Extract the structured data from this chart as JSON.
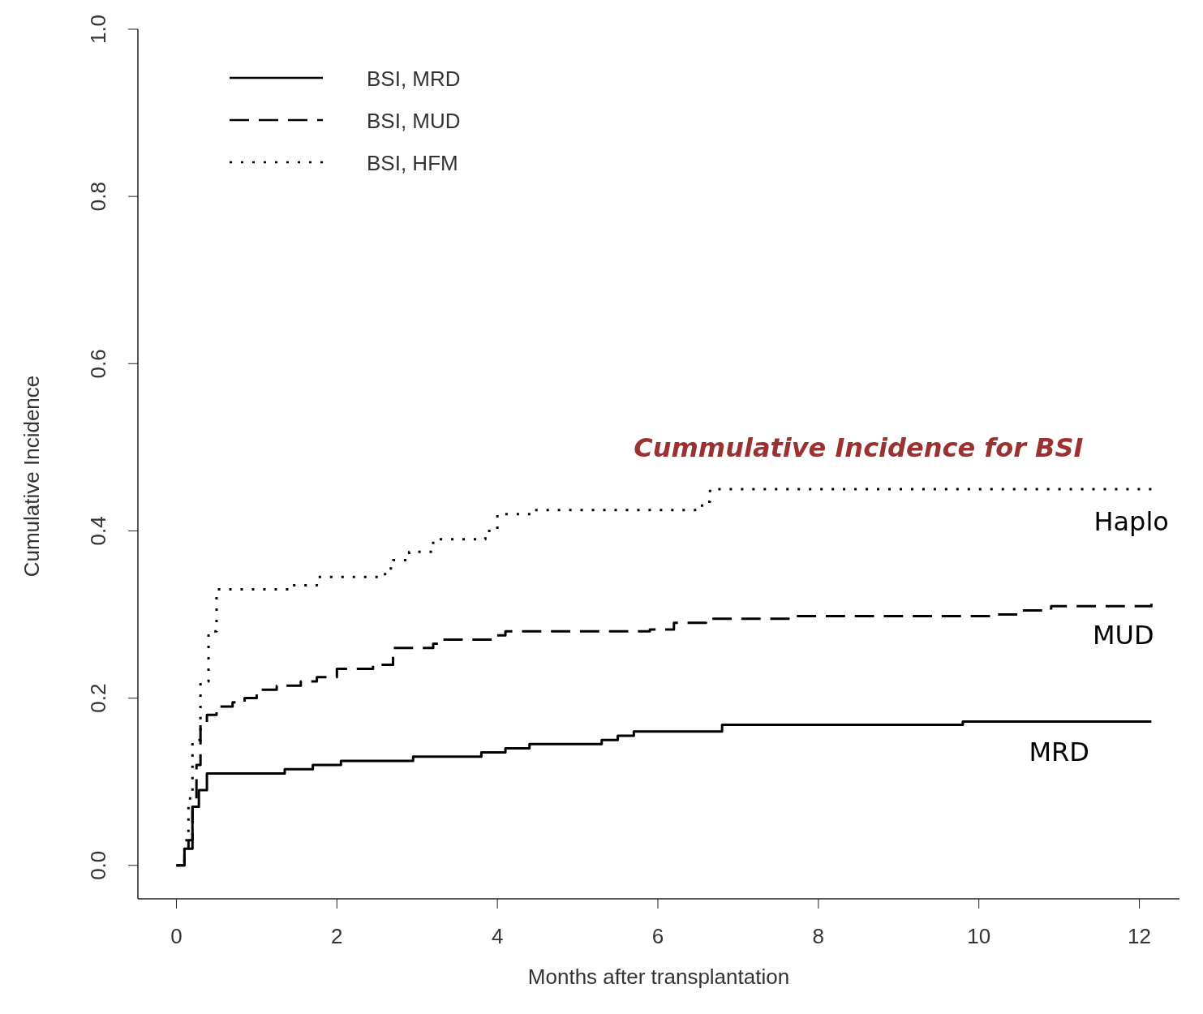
{
  "chart_data": {
    "type": "step",
    "title": "Cummulative Incidence for BSI",
    "xlabel": "Months after transplantation",
    "ylabel": "Cumulative Incidence",
    "xlim": [
      -0.48,
      12.5
    ],
    "ylim": [
      -0.04,
      1.0
    ],
    "xticks": [
      0,
      2,
      4,
      6,
      8,
      10,
      12
    ],
    "yticks": [
      {
        "value": 0,
        "label": "0.0"
      },
      {
        "value": 0.2,
        "label": "0.2"
      },
      {
        "value": 0.4,
        "label": "0.4"
      },
      {
        "value": 0.6,
        "label": "0.6"
      },
      {
        "value": 0.8,
        "label": "0.8"
      },
      {
        "value": 1,
        "label": "1.0"
      }
    ],
    "grid": false,
    "legend": "top left",
    "series": [
      {
        "name": "BSI, MRD",
        "color": "#000000",
        "line_style": "solid",
        "x": [
          0,
          0.1,
          0.15,
          0.2,
          0.28,
          0.38,
          1.35,
          1.7,
          2.05,
          2.95,
          3.8,
          4.1,
          4.4,
          5.3,
          5.5,
          5.7,
          6.8,
          9.8,
          12.15
        ],
        "values": [
          0,
          0.02,
          0.03,
          0.07,
          0.09,
          0.11,
          0.115,
          0.12,
          0.125,
          0.13,
          0.135,
          0.14,
          0.145,
          0.15,
          0.155,
          0.16,
          0.168,
          0.172,
          0.172
        ]
      },
      {
        "name": "BSI, MUD",
        "color": "#000000",
        "line_style": "dashed",
        "x": [
          0,
          0.1,
          0.2,
          0.25,
          0.3,
          0.38,
          0.5,
          0.7,
          0.85,
          1.0,
          1.25,
          1.55,
          1.75,
          2.0,
          2.45,
          2.7,
          3.2,
          3.3,
          3.95,
          4.1,
          5.9,
          6.2,
          6.6,
          7.7,
          10.2,
          10.5,
          10.9,
          12.15
        ],
        "values": [
          0,
          0.02,
          0.07,
          0.12,
          0.17,
          0.18,
          0.19,
          0.195,
          0.2,
          0.21,
          0.215,
          0.22,
          0.225,
          0.235,
          0.24,
          0.26,
          0.265,
          0.27,
          0.275,
          0.28,
          0.282,
          0.29,
          0.295,
          0.298,
          0.3,
          0.305,
          0.31,
          0.313
        ]
      },
      {
        "name": "BSI, HFM",
        "color": "#000000",
        "line_style": "dotted",
        "x": [
          0,
          0.1,
          0.15,
          0.2,
          0.3,
          0.4,
          0.5,
          1.4,
          1.75,
          2.6,
          2.7,
          2.9,
          3.2,
          3.85,
          4.0,
          4.45,
          6.55,
          6.65,
          12.15
        ],
        "values": [
          0,
          0.03,
          0.08,
          0.15,
          0.22,
          0.28,
          0.33,
          0.335,
          0.345,
          0.355,
          0.365,
          0.375,
          0.39,
          0.4,
          0.42,
          0.425,
          0.435,
          0.45,
          0.45
        ]
      }
    ],
    "annotations": [
      "Haplo",
      "MUD",
      "MRD"
    ]
  }
}
